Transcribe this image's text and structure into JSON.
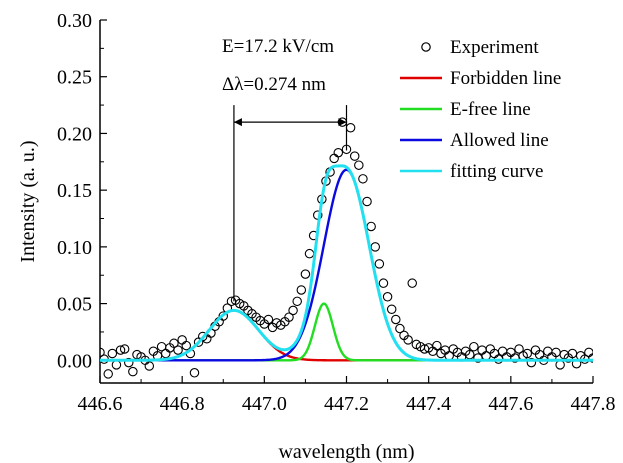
{
  "chart_data": {
    "type": "scatter",
    "xlabel": "wavelength (nm)",
    "ylabel": "Intensity (a. u.)",
    "xlim": [
      446.6,
      447.8
    ],
    "ylim": [
      -0.02,
      0.3
    ],
    "x_ticks": [
      "446.6",
      "446.8",
      "447.0",
      "447.2",
      "447.4",
      "447.6",
      "447.8"
    ],
    "y_ticks": [
      "0.00",
      "0.05",
      "0.10",
      "0.15",
      "0.20",
      "0.25",
      "0.30"
    ],
    "annotations": {
      "field": "E=17.2 kV/cm",
      "delta": "Δλ=0.274 nm",
      "delta_x_start": 446.926,
      "delta_x_end": 447.2,
      "delta_y": 0.21
    },
    "legend_position": "top-right",
    "series": [
      {
        "name": "Experiment",
        "kind": "scatter",
        "color": "#000000",
        "points": [
          [
            446.6,
            0.007
          ],
          [
            446.61,
            0.001
          ],
          [
            446.62,
            -0.012
          ],
          [
            446.63,
            0.006
          ],
          [
            446.64,
            -0.004
          ],
          [
            446.65,
            0.009
          ],
          [
            446.66,
            0.01
          ],
          [
            446.67,
            -0.002
          ],
          [
            446.68,
            -0.01
          ],
          [
            446.69,
            0.005
          ],
          [
            446.7,
            0.003
          ],
          [
            446.71,
            0.0
          ],
          [
            446.72,
            -0.005
          ],
          [
            446.73,
            0.008
          ],
          [
            446.74,
            0.004
          ],
          [
            446.75,
            0.012
          ],
          [
            446.76,
            0.006
          ],
          [
            446.77,
            0.011
          ],
          [
            446.78,
            0.015
          ],
          [
            446.79,
            0.009
          ],
          [
            446.8,
            0.018
          ],
          [
            446.81,
            0.013
          ],
          [
            446.82,
            0.006
          ],
          [
            446.83,
            -0.011
          ],
          [
            446.84,
            0.016
          ],
          [
            446.85,
            0.021
          ],
          [
            446.86,
            0.019
          ],
          [
            446.87,
            0.024
          ],
          [
            446.88,
            0.03
          ],
          [
            446.89,
            0.034
          ],
          [
            446.9,
            0.039
          ],
          [
            446.91,
            0.046
          ],
          [
            446.92,
            0.052
          ],
          [
            446.93,
            0.053
          ],
          [
            446.94,
            0.05
          ],
          [
            446.95,
            0.048
          ],
          [
            446.96,
            0.044
          ],
          [
            446.97,
            0.041
          ],
          [
            446.98,
            0.038
          ],
          [
            446.99,
            0.035
          ],
          [
            447.0,
            0.032
          ],
          [
            447.01,
            0.036
          ],
          [
            447.02,
            0.029
          ],
          [
            447.03,
            0.033
          ],
          [
            447.04,
            0.031
          ],
          [
            447.05,
            0.034
          ],
          [
            447.06,
            0.038
          ],
          [
            447.07,
            0.044
          ],
          [
            447.08,
            0.052
          ],
          [
            447.09,
            0.062
          ],
          [
            447.1,
            0.076
          ],
          [
            447.11,
            0.094
          ],
          [
            447.12,
            0.11
          ],
          [
            447.13,
            0.128
          ],
          [
            447.14,
            0.142
          ],
          [
            447.15,
            0.158
          ],
          [
            447.16,
            0.166
          ],
          [
            447.17,
            0.178
          ],
          [
            447.18,
            0.183
          ],
          [
            447.19,
            0.21
          ],
          [
            447.2,
            0.186
          ],
          [
            447.21,
            0.205
          ],
          [
            447.22,
            0.18
          ],
          [
            447.23,
            0.172
          ],
          [
            447.24,
            0.16
          ],
          [
            447.25,
            0.14
          ],
          [
            447.26,
            0.118
          ],
          [
            447.27,
            0.1
          ],
          [
            447.28,
            0.085
          ],
          [
            447.29,
            0.068
          ],
          [
            447.3,
            0.056
          ],
          [
            447.31,
            0.045
          ],
          [
            447.32,
            0.036
          ],
          [
            447.33,
            0.028
          ],
          [
            447.34,
            0.022
          ],
          [
            447.35,
            0.018
          ],
          [
            447.36,
            0.068
          ],
          [
            447.37,
            0.014
          ],
          [
            447.38,
            0.012
          ],
          [
            447.39,
            0.01
          ],
          [
            447.4,
            0.011
          ],
          [
            447.41,
            0.008
          ],
          [
            447.42,
            0.013
          ],
          [
            447.43,
            0.006
          ],
          [
            447.44,
            0.009
          ],
          [
            447.45,
            0.004
          ],
          [
            447.46,
            0.01
          ],
          [
            447.47,
            0.007
          ],
          [
            447.48,
            0.003
          ],
          [
            447.49,
            0.008
          ],
          [
            447.5,
            0.005
          ],
          [
            447.51,
            0.012
          ],
          [
            447.52,
            0.002
          ],
          [
            447.53,
            0.009
          ],
          [
            447.54,
            0.004
          ],
          [
            447.55,
            0.01
          ],
          [
            447.56,
            0.006
          ],
          [
            447.57,
            0.001
          ],
          [
            447.58,
            0.008
          ],
          [
            447.59,
            0.003
          ],
          [
            447.6,
            0.007
          ],
          [
            447.61,
            0.002
          ],
          [
            447.62,
            0.01
          ],
          [
            447.63,
            0.004
          ],
          [
            447.64,
            0.006
          ],
          [
            447.65,
            -0.002
          ],
          [
            447.66,
            0.009
          ],
          [
            447.67,
            0.005
          ],
          [
            447.68,
            0.0
          ],
          [
            447.69,
            0.008
          ],
          [
            447.7,
            0.003
          ],
          [
            447.71,
            0.007
          ],
          [
            447.72,
            -0.004
          ],
          [
            447.73,
            0.005
          ],
          [
            447.74,
            0.002
          ],
          [
            447.75,
            0.006
          ],
          [
            447.76,
            -0.003
          ],
          [
            447.77,
            0.004
          ],
          [
            447.78,
            0.001
          ],
          [
            447.79,
            0.007
          ],
          [
            447.8,
            0.002
          ]
        ]
      },
      {
        "name": "Forbidden line",
        "kind": "line",
        "color": "#e00000",
        "model": {
          "center": 446.926,
          "amplitude": 0.044,
          "width": 0.06
        }
      },
      {
        "name": "E-free line",
        "kind": "line",
        "color": "#22dd22",
        "model": {
          "center": 447.145,
          "amplitude": 0.05,
          "width": 0.022
        }
      },
      {
        "name": "Allowed line",
        "kind": "line",
        "color": "#0a0ae0",
        "model": {
          "center": 447.2,
          "amplitude": 0.168,
          "width": 0.055
        }
      },
      {
        "name": "fitting curve",
        "kind": "line",
        "color": "#22e0f0",
        "model": {
          "sum_of": [
            "Forbidden line",
            "E-free line",
            "Allowed line"
          ]
        }
      }
    ]
  }
}
